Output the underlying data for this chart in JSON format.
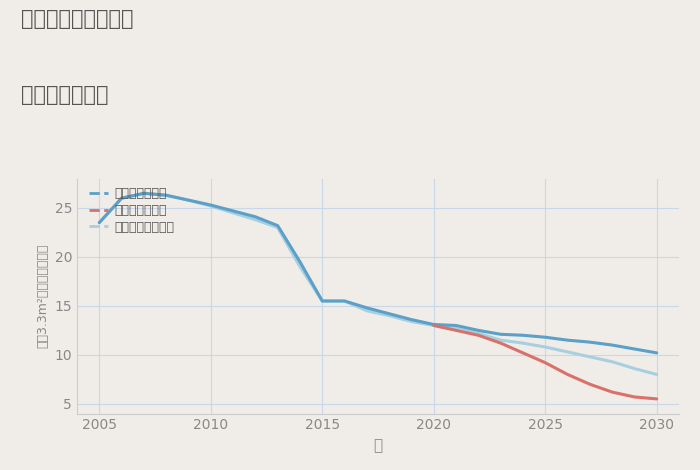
{
  "title_line1": "三重県伊賀市真泥の",
  "title_line2": "土地の価格推移",
  "xlabel": "年",
  "ylabel": "坪（3.3m²）単価（万円）",
  "background_color": "#f0ede8",
  "plot_bg_color": "#f0ede8",
  "grid_color": "#c8d8e8",
  "xlim": [
    2004,
    2031
  ],
  "ylim": [
    4,
    28
  ],
  "yticks": [
    5,
    10,
    15,
    20,
    25
  ],
  "xticks": [
    2005,
    2010,
    2015,
    2020,
    2025,
    2030
  ],
  "good_scenario": {
    "label": "グッドシナリオ",
    "color": "#5aa0c8",
    "x": [
      2005,
      2006,
      2007,
      2008,
      2009,
      2010,
      2011,
      2012,
      2013,
      2014,
      2015,
      2016,
      2017,
      2018,
      2019,
      2020,
      2021,
      2022,
      2023,
      2024,
      2025,
      2026,
      2027,
      2028,
      2029,
      2030
    ],
    "y": [
      23.5,
      26.0,
      26.5,
      26.3,
      25.8,
      25.3,
      24.7,
      24.1,
      23.2,
      19.5,
      15.5,
      15.5,
      14.8,
      14.2,
      13.6,
      13.1,
      13.0,
      12.5,
      12.1,
      12.0,
      11.8,
      11.5,
      11.3,
      11.0,
      10.6,
      10.2
    ]
  },
  "bad_scenario": {
    "label": "バッドシナリオ",
    "color": "#d9706a",
    "x": [
      2020,
      2021,
      2022,
      2023,
      2024,
      2025,
      2026,
      2027,
      2028,
      2029,
      2030
    ],
    "y": [
      13.0,
      12.5,
      12.0,
      11.2,
      10.2,
      9.2,
      8.0,
      7.0,
      6.2,
      5.7,
      5.5
    ]
  },
  "normal_scenario": {
    "label": "ノーマルシナリオ",
    "color": "#a8cfe0",
    "x": [
      2005,
      2006,
      2007,
      2008,
      2009,
      2010,
      2011,
      2012,
      2013,
      2014,
      2015,
      2016,
      2017,
      2018,
      2019,
      2020,
      2021,
      2022,
      2023,
      2024,
      2025,
      2026,
      2027,
      2028,
      2029,
      2030
    ],
    "y": [
      23.5,
      26.0,
      26.5,
      26.3,
      25.8,
      25.2,
      24.5,
      23.8,
      23.0,
      19.0,
      15.5,
      15.5,
      14.5,
      14.0,
      13.4,
      13.0,
      12.7,
      12.2,
      11.5,
      11.2,
      10.8,
      10.3,
      9.8,
      9.3,
      8.6,
      8.0
    ]
  },
  "title_color": "#555555",
  "axis_color": "#888888",
  "tick_label_color": "#888888"
}
